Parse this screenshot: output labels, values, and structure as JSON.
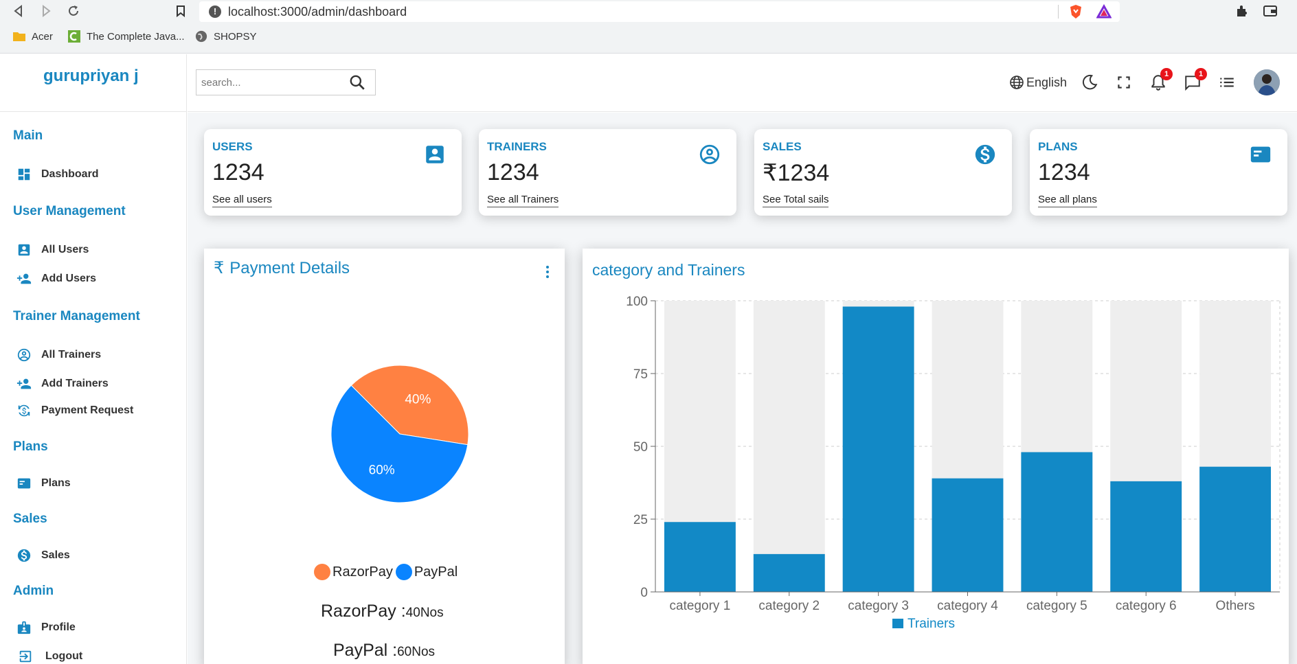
{
  "browser": {
    "url": "localhost:3000/admin/dashboard",
    "bookmarks": [
      "Acer",
      "The Complete Java...",
      "SHOPSY"
    ]
  },
  "sidebar": {
    "brand": "gurupriyan j",
    "sections": [
      {
        "title": "Main",
        "items": [
          {
            "label": "Dashboard",
            "icon": "dashboard-icon"
          }
        ]
      },
      {
        "title": "User Management",
        "items": [
          {
            "label": "All Users",
            "icon": "user-box-icon"
          },
          {
            "label": "Add Users",
            "icon": "person-add-icon"
          }
        ]
      },
      {
        "title": "Trainer Management",
        "items": [
          {
            "label": "All Trainers",
            "icon": "account-circle-icon"
          },
          {
            "label": "Add Trainers",
            "icon": "person-add-icon"
          },
          {
            "label": "Payment Request",
            "icon": "currency-exchange-icon"
          }
        ]
      },
      {
        "title": "Plans",
        "items": [
          {
            "label": "Plans",
            "icon": "card-icon"
          }
        ]
      },
      {
        "title": "Sales",
        "items": [
          {
            "label": "Sales",
            "icon": "dollar-icon"
          }
        ]
      },
      {
        "title": "Admin",
        "items": [
          {
            "label": "Profile",
            "icon": "badge-icon"
          },
          {
            "label": "Logout",
            "icon": "logout-icon"
          }
        ]
      }
    ]
  },
  "topbar": {
    "search_placeholder": "search...",
    "language": "English",
    "notifications_count": "1",
    "messages_count": "1"
  },
  "cards": [
    {
      "title": "USERS",
      "value": "1234",
      "link": "See all users",
      "icon": "user-box-icon"
    },
    {
      "title": "TRAINERS",
      "value": "1234",
      "link": "See all Trainers",
      "icon": "account-circle-icon"
    },
    {
      "title": "SALES",
      "value": "₹1234",
      "link": "See Total sails",
      "icon": "dollar-icon"
    },
    {
      "title": "PLANS",
      "value": "1234",
      "link": "See all plans",
      "icon": "card-icon"
    }
  ],
  "payment": {
    "title": "Payment Details",
    "currency_symbol": "₹",
    "legend": [
      "RazorPay",
      "PayPal"
    ],
    "razorpay_label": "RazorPay :",
    "razorpay_value": "40",
    "razorpay_unit": "Nos",
    "paypal_label": "PayPal :",
    "paypal_value": "60",
    "paypal_unit": "Nos",
    "colors": {
      "RazorPay": "#ff8142",
      "PayPal": "#0a84ff"
    }
  },
  "chart_data": [
    {
      "type": "pie",
      "categories": [
        "RazorPay",
        "PayPal"
      ],
      "values": [
        40,
        60
      ],
      "data_labels": [
        "40%",
        "60%"
      ],
      "legend": "bottom"
    },
    {
      "type": "bar",
      "title": "category and Trainers",
      "categories": [
        "category 1",
        "category 2",
        "category 3",
        "category 4",
        "category 5",
        "category 6",
        "Others"
      ],
      "series": [
        {
          "name": "Trainers",
          "values": [
            24,
            13,
            98,
            39,
            48,
            38,
            43
          ],
          "color": "#1289c6"
        }
      ],
      "ylim": [
        0,
        100
      ],
      "yticks": [
        0,
        25,
        50,
        75,
        100
      ],
      "background_bars": true,
      "grid": true,
      "legend": "bottom"
    }
  ]
}
